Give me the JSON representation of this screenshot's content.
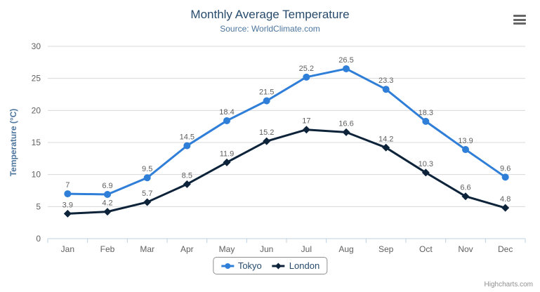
{
  "header": {
    "title": "Monthly Average Temperature",
    "subtitle": "Source: WorldClimate.com"
  },
  "context_menu": {
    "icon": "hamburger-menu-icon"
  },
  "credits": {
    "label": "Highcharts.com"
  },
  "colors": {
    "tokyo_series": "#2f7ed8",
    "london_series": "#0d233a",
    "title_text": "#274b6d",
    "subtitle_text": "#4d759e",
    "axis_title": "#4d759e",
    "axis_labels": "#606060",
    "data_labels": "#606060",
    "grid_line": "#d8d8d8",
    "axis_line": "#c0d0e0",
    "legend_border": "#909090",
    "legend_text": "#274b6d",
    "credits_text": "#909090",
    "menu_icon": "#666666",
    "background": "#ffffff"
  },
  "chart_data": {
    "type": "line",
    "title": "Monthly Average Temperature",
    "subtitle": "Source: WorldClimate.com",
    "categories": [
      "Jan",
      "Feb",
      "Mar",
      "Apr",
      "May",
      "Jun",
      "Jul",
      "Aug",
      "Sep",
      "Oct",
      "Nov",
      "Dec"
    ],
    "series": [
      {
        "name": "Tokyo",
        "color": "#2f7ed8",
        "marker": "circle",
        "values": [
          7,
          6.9,
          9.5,
          14.5,
          18.4,
          21.5,
          25.2,
          26.5,
          23.3,
          18.3,
          13.9,
          9.6
        ]
      },
      {
        "name": "London",
        "color": "#0d233a",
        "marker": "diamond",
        "values": [
          3.9,
          4.2,
          5.7,
          8.5,
          11.9,
          15.2,
          17,
          16.6,
          14.2,
          10.3,
          6.6,
          4.8
        ]
      }
    ],
    "xlabel": "",
    "ylabel": "Temperature (°C)",
    "ylim": [
      0,
      30
    ],
    "ytick_step": 5,
    "grid": "horizontal",
    "legend_position": "bottom",
    "data_labels_shown": true
  }
}
